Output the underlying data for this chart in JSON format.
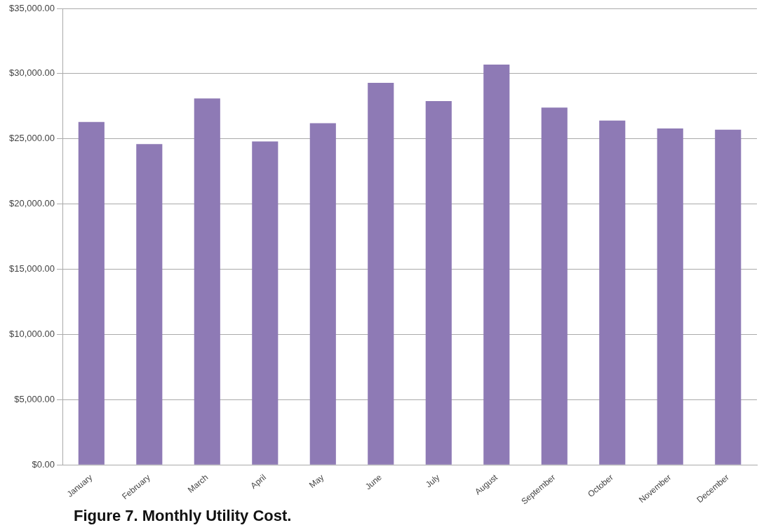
{
  "chart_data": {
    "type": "bar",
    "title": "Figure 7. Monthly Utility Cost.",
    "categories": [
      "January",
      "February",
      "March",
      "April",
      "May",
      "June",
      "July",
      "August",
      "September",
      "October",
      "November",
      "December"
    ],
    "values": [
      26300,
      24600,
      28100,
      24800,
      26200,
      29300,
      27900,
      30700,
      27400,
      26400,
      25800,
      25700
    ],
    "color": "#8e7ab5",
    "ylim": [
      0,
      35000
    ],
    "yticks": [
      {
        "value": 0,
        "label": "$0.00"
      },
      {
        "value": 5000,
        "label": "$5,000.00"
      },
      {
        "value": 10000,
        "label": "$10,000.00"
      },
      {
        "value": 15000,
        "label": "$15,000.00"
      },
      {
        "value": 20000,
        "label": "$20,000.00"
      },
      {
        "value": 25000,
        "label": "$25,000.00"
      },
      {
        "value": 30000,
        "label": "$30,000.00"
      },
      {
        "value": 35000,
        "label": "$35,000.00"
      }
    ],
    "grid": "y",
    "legend": false
  }
}
